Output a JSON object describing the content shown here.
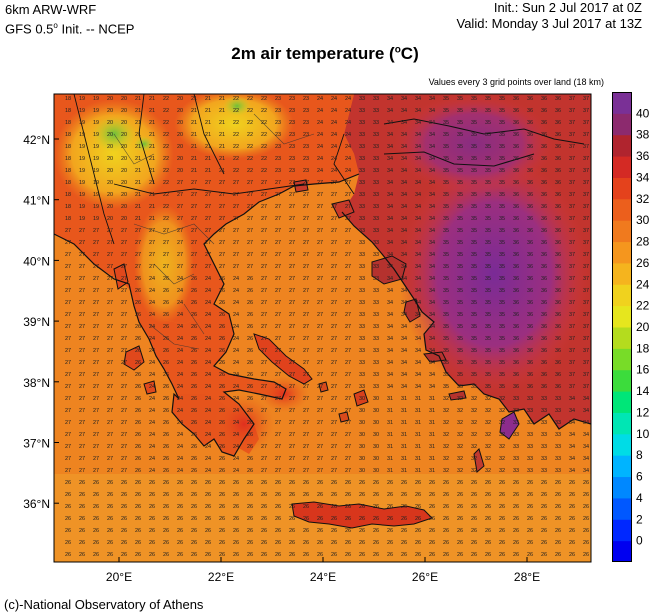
{
  "header": {
    "model_line1": "6km ARW-WRF",
    "model_line2_prefix": "GFS 0.5",
    "model_line2_suffix": " Init. -- NCEP",
    "init_line": "Init.:  Sun 2 Jul 2017 at 0Z",
    "valid_line": "Valid: Monday 3 Jul 2017 at 13Z"
  },
  "title": {
    "prefix": "2m air temperature (",
    "sup": "o",
    "suffix": "C)"
  },
  "note": "Values every 3 grid points over land (18 km)",
  "credit": "(c)-National Observatory of Athens",
  "map": {
    "lat_labels": [
      "42°N",
      "41°N",
      "40°N",
      "39°N",
      "38°N",
      "37°N",
      "36°N"
    ],
    "lon_labels": [
      "20°E",
      "22°E",
      "24°E",
      "26°E",
      "28°E"
    ],
    "colorbar_labels": [
      "0",
      "2",
      "4",
      "6",
      "8",
      "10",
      "12",
      "14",
      "16",
      "18",
      "20",
      "22",
      "24",
      "26",
      "28",
      "30",
      "32",
      "34",
      "36",
      "38",
      "40"
    ],
    "colors": {
      "sea": "#ef7d1f",
      "land_west": "#e8611a",
      "land_east": "#8a2c8a",
      "mountain": "#e6d31e",
      "peak": "#7cc63a",
      "coast": "#111111"
    }
  }
}
